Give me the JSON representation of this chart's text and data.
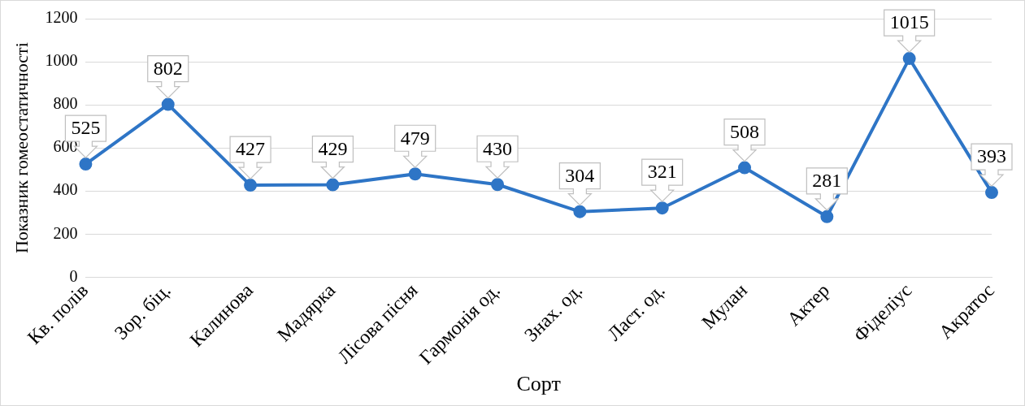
{
  "chart_data": {
    "type": "line",
    "xlabel": "Сорт",
    "ylabel": "Показник гомеостатичності",
    "categories": [
      "Кв. полів",
      "Зор. біц.",
      "Калинова",
      "Мадярка",
      "Лісова пісня",
      "Гармонія од.",
      "Знах. од.",
      "Ласт. од.",
      "Мулан",
      "Актер",
      "Фіделіус",
      "Акратос"
    ],
    "series": [
      {
        "color": "#2e75c6",
        "values": [
          525,
          802,
          427,
          429,
          479,
          430,
          304,
          321,
          508,
          281,
          1015,
          393
        ]
      }
    ],
    "ylim": [
      0,
      1200
    ],
    "yticks": [
      0,
      200,
      400,
      600,
      800,
      1000,
      1200
    ],
    "grid": "y",
    "legend": false,
    "marker": "circle",
    "line_style": "solid",
    "data_labels": true
  }
}
